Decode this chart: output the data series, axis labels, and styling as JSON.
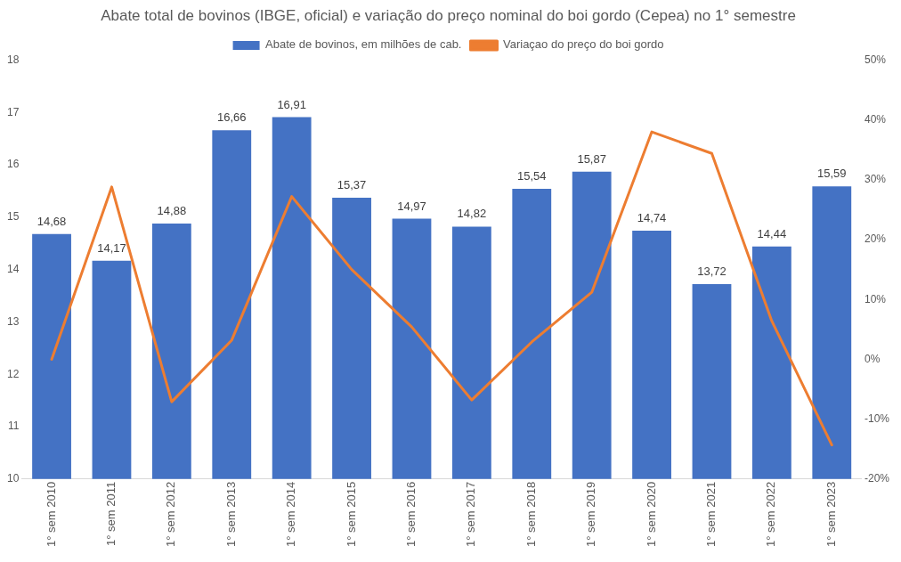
{
  "chart_data": {
    "type": "bar",
    "title": "Abate total de bovinos (IBGE, oficial) e variação do preço nominal do boi gordo (Cepea) no 1° semestre",
    "categories": [
      "1° sem 2010",
      "1° sem 2011",
      "1° sem 2012",
      "1° sem 2013",
      "1° sem 2014",
      "1° sem 2015",
      "1° sem 2016",
      "1° sem 2017",
      "1° sem 2018",
      "1° sem 2019",
      "1° sem 2020",
      "1° sem 2021",
      "1° sem 2022",
      "1° sem 2023"
    ],
    "series": [
      {
        "name": "Abate de bovinos, em milhões de cab.",
        "color": "#4472c4",
        "values": [
          14.68,
          14.17,
          14.88,
          16.66,
          16.91,
          15.37,
          14.97,
          14.82,
          15.54,
          15.87,
          14.74,
          13.72,
          14.44,
          15.59
        ],
        "value_labels": [
          "14,68",
          "14,17",
          "14,88",
          "16,66",
          "16,91",
          "15,37",
          "14,97",
          "14,82",
          "15,54",
          "15,87",
          "14,74",
          "13,72",
          "14,44",
          "15,59"
        ]
      },
      {
        "name": "Variaçao do preço do boi gordo",
        "type": "line",
        "axis": "y2",
        "color": "#ed7d31",
        "values": [
          0,
          28.8,
          -7.1,
          3.2,
          27.2,
          15.0,
          5.4,
          -6.8,
          2.9,
          11.2,
          38.0,
          34.4,
          6.4,
          -14.3
        ]
      }
    ],
    "ylim": [
      10,
      18
    ],
    "yticks": [
      10,
      11,
      12,
      13,
      14,
      15,
      16,
      17,
      18
    ],
    "y2lim": [
      -20,
      50
    ],
    "y2ticks": [
      {
        "value": -20,
        "label": "-20%"
      },
      {
        "value": -10,
        "label": "-10%"
      },
      {
        "value": 0,
        "label": "0%"
      },
      {
        "value": 10,
        "label": "10%"
      },
      {
        "value": 20,
        "label": "20%"
      },
      {
        "value": 30,
        "label": "30%"
      },
      {
        "value": 40,
        "label": "40%"
      },
      {
        "value": 50,
        "label": "50%"
      }
    ],
    "grid": false,
    "legend": "top",
    "marker": "none",
    "line_style": "solid"
  }
}
